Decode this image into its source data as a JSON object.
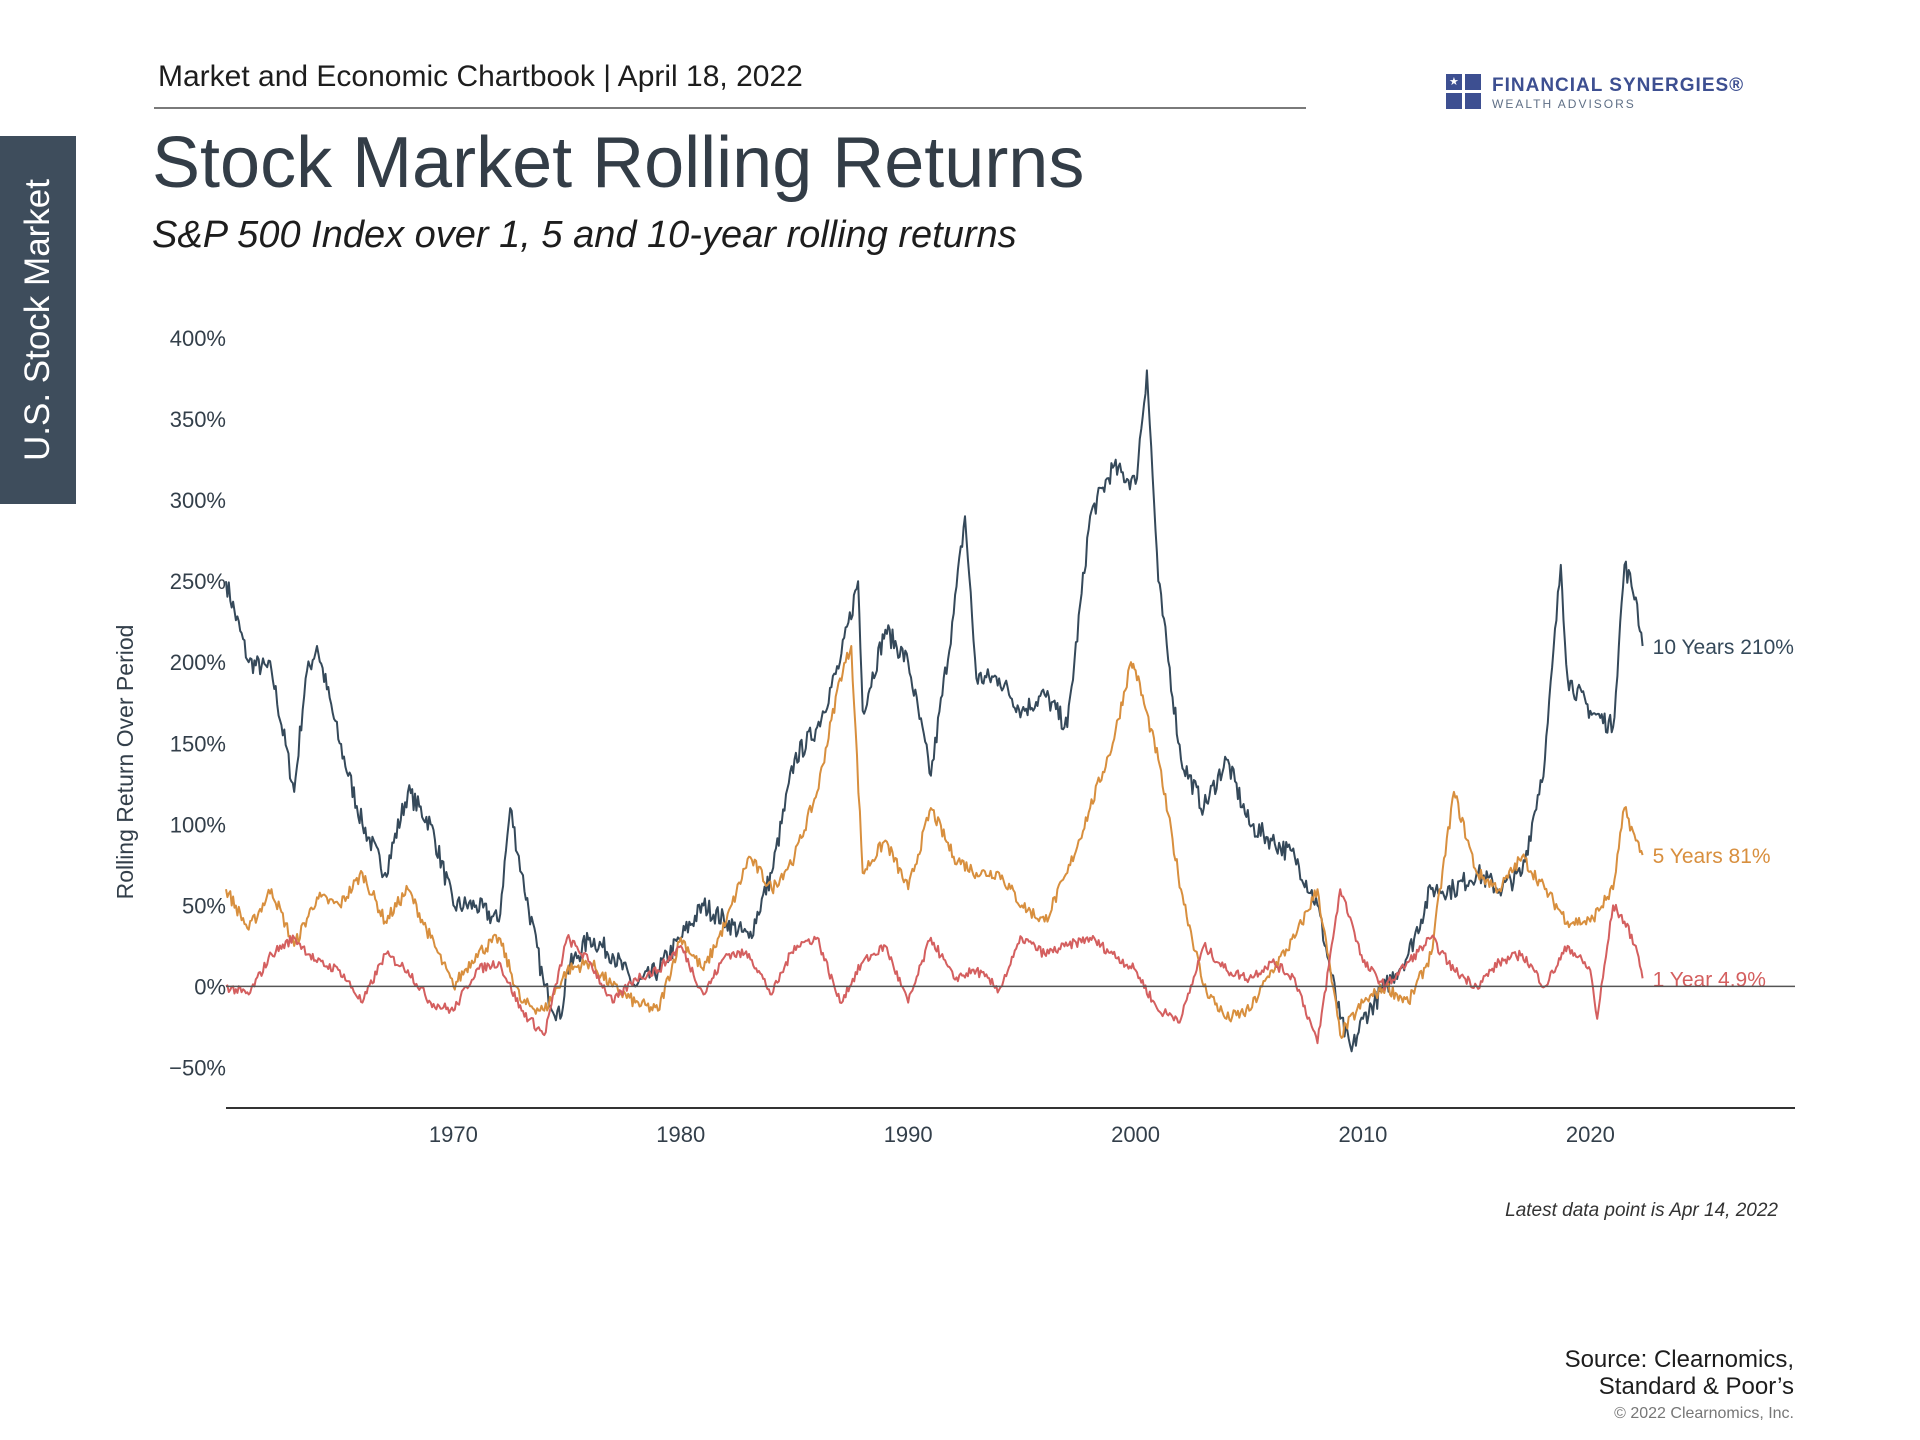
{
  "header": {
    "chartbook": "Market and Economic Chartbook | April 18, 2022"
  },
  "sidebar": {
    "label": "U.S. Stock Market"
  },
  "logo": {
    "name": "FINANCIAL SYNERGIES®",
    "tagline": "WEALTH ADVISORS",
    "color": "#3d4f91"
  },
  "title": "Stock Market Rolling Returns",
  "subtitle": "S&P 500 Index over 1, 5 and 10-year rolling returns",
  "note": "Latest data point is Apr 14, 2022",
  "source": {
    "line1": "Source: Clearnomics,",
    "line2": "Standard & Poor’s"
  },
  "copyright": "© 2022 Clearnomics, Inc.",
  "chart_data": {
    "type": "line",
    "title": "Stock Market Rolling Returns",
    "ylabel": "Rolling Return Over Period",
    "xlabel": "",
    "xlim": [
      1960,
      2029
    ],
    "ylim": [
      -75,
      400
    ],
    "yticks": [
      400,
      350,
      300,
      250,
      200,
      150,
      100,
      50,
      0,
      -50
    ],
    "ytick_labels": [
      "400%",
      "350%",
      "300%",
      "250%",
      "200%",
      "150%",
      "100%",
      "50%",
      "0%",
      "−50%"
    ],
    "xticks": [
      1970,
      1980,
      1990,
      2000,
      2010,
      2020
    ],
    "xtick_labels": [
      "1970",
      "1980",
      "1990",
      "2000",
      "2010",
      "2020"
    ],
    "grid": false,
    "zero_line": true,
    "series": [
      {
        "name": "10 Years",
        "end_label": "10 Years 210%",
        "color": "#35495a",
        "x": [
          1960,
          1961,
          1962,
          1963,
          1963.5,
          1964,
          1965,
          1966,
          1967,
          1968,
          1969,
          1970,
          1971,
          1972,
          1972.5,
          1973,
          1974,
          1974.7,
          1975,
          1976,
          1977,
          1978,
          1979,
          1980,
          1981,
          1982,
          1983,
          1984,
          1985,
          1986,
          1987,
          1987.8,
          1988,
          1989,
          1990,
          1991,
          1992,
          1992.5,
          1993,
          1994,
          1995,
          1996,
          1997,
          1998,
          1999,
          2000,
          2000.5,
          2001,
          2002,
          2003,
          2004,
          2005,
          2006,
          2007,
          2008,
          2009,
          2009.5,
          2010,
          2011,
          2012,
          2013,
          2014,
          2015,
          2016,
          2017,
          2018,
          2018.7,
          2019,
          2020,
          2021,
          2021.5,
          2022,
          2022.3
        ],
        "y": [
          250,
          200,
          195,
          120,
          190,
          210,
          150,
          100,
          70,
          120,
          100,
          50,
          50,
          40,
          110,
          70,
          0,
          -20,
          10,
          30,
          20,
          0,
          10,
          30,
          50,
          40,
          30,
          70,
          140,
          160,
          200,
          250,
          170,
          220,
          200,
          130,
          230,
          290,
          190,
          190,
          170,
          180,
          160,
          290,
          320,
          310,
          380,
          250,
          140,
          110,
          140,
          100,
          90,
          80,
          50,
          -20,
          -40,
          -20,
          0,
          20,
          60,
          60,
          70,
          60,
          70,
          140,
          260,
          190,
          170,
          160,
          260,
          240,
          210
        ]
      },
      {
        "name": "5 Years",
        "end_label": "5 Years 81%",
        "color": "#d88f3e",
        "x": [
          1960,
          1961,
          1962,
          1963,
          1964,
          1965,
          1966,
          1967,
          1968,
          1969,
          1970,
          1971,
          1972,
          1973,
          1974,
          1975,
          1976,
          1977,
          1978,
          1979,
          1980,
          1981,
          1982,
          1983,
          1984,
          1985,
          1986,
          1987,
          1987.5,
          1988,
          1989,
          1990,
          1991,
          1992,
          1993,
          1994,
          1995,
          1996,
          1997,
          1998,
          1999,
          1999.8,
          2000,
          2001,
          2002,
          2003,
          2004,
          2005,
          2006,
          2007,
          2008,
          2009,
          2010,
          2011,
          2012,
          2013,
          2014,
          2015,
          2016,
          2017,
          2018,
          2019,
          2020,
          2021,
          2021.5,
          2022,
          2022.3
        ],
        "y": [
          60,
          35,
          60,
          25,
          55,
          50,
          70,
          40,
          60,
          30,
          0,
          20,
          30,
          -10,
          -15,
          10,
          15,
          0,
          -10,
          -15,
          30,
          10,
          40,
          80,
          60,
          80,
          120,
          190,
          210,
          70,
          90,
          60,
          110,
          80,
          70,
          70,
          50,
          40,
          70,
          110,
          150,
          200,
          195,
          140,
          60,
          0,
          -20,
          -15,
          10,
          30,
          60,
          -30,
          -10,
          0,
          -10,
          20,
          120,
          70,
          60,
          80,
          60,
          40,
          40,
          60,
          110,
          90,
          81
        ]
      },
      {
        "name": "1 Year",
        "end_label": "1 Year 4.9%",
        "color": "#d45f5f",
        "x": [
          1960,
          1961,
          1962,
          1963,
          1964,
          1965,
          1966,
          1967,
          1968,
          1969,
          1970,
          1971,
          1972,
          1973,
          1974,
          1975,
          1976,
          1977,
          1978,
          1979,
          1980,
          1981,
          1982,
          1983,
          1984,
          1985,
          1986,
          1987,
          1988,
          1989,
          1990,
          1991,
          1992,
          1993,
          1994,
          1995,
          1996,
          1997,
          1998,
          1999,
          2000,
          2001,
          2002,
          2003,
          2004,
          2005,
          2006,
          2007,
          2008,
          2009,
          2009.5,
          2010,
          2011,
          2012,
          2013,
          2014,
          2015,
          2016,
          2017,
          2018,
          2019,
          2020,
          2020.3,
          2021,
          2021.5,
          2022,
          2022.3
        ],
        "y": [
          0,
          -5,
          20,
          30,
          15,
          10,
          -10,
          20,
          10,
          -10,
          -15,
          10,
          15,
          -15,
          -30,
          30,
          15,
          -10,
          5,
          10,
          25,
          -5,
          20,
          20,
          -5,
          25,
          30,
          -10,
          15,
          25,
          -10,
          30,
          5,
          10,
          -2,
          30,
          20,
          25,
          30,
          20,
          10,
          -15,
          -20,
          25,
          10,
          5,
          15,
          5,
          -35,
          60,
          40,
          15,
          0,
          15,
          30,
          10,
          0,
          15,
          20,
          0,
          25,
          10,
          -20,
          50,
          40,
          25,
          5
        ]
      }
    ]
  }
}
